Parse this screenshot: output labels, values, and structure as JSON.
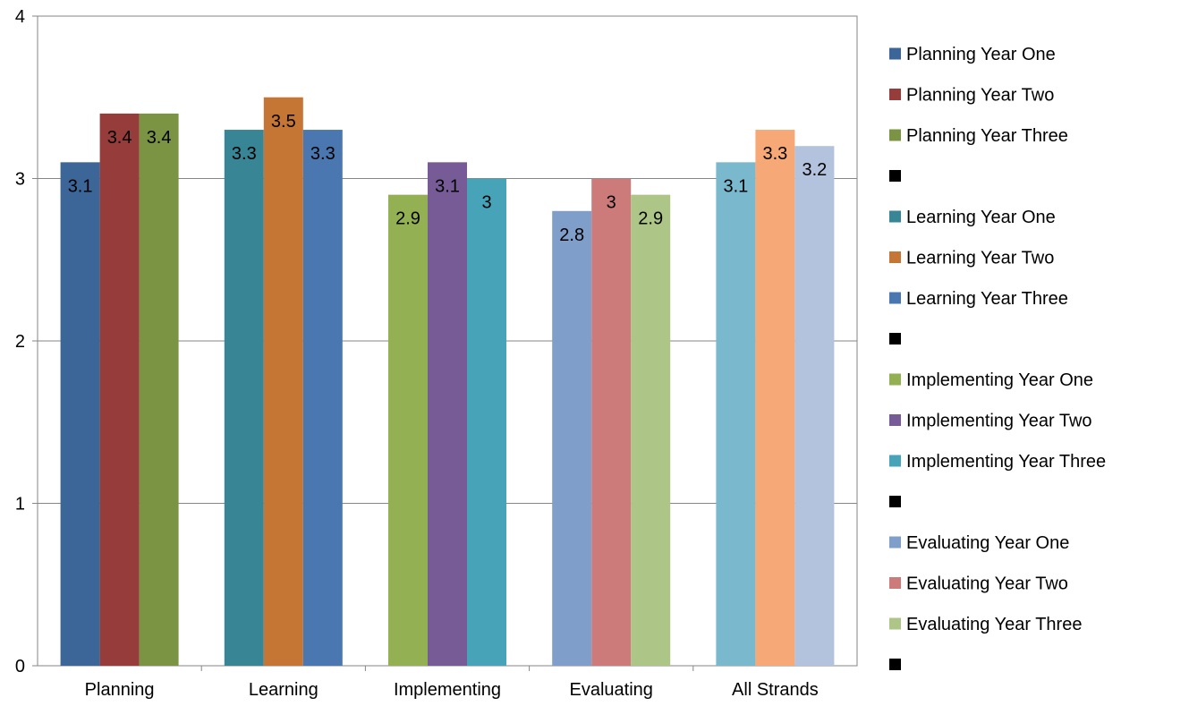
{
  "chart_data": {
    "type": "bar",
    "title": "",
    "xlabel": "",
    "ylabel": "",
    "ylim": [
      0,
      4
    ],
    "yticks": [
      "0",
      "1",
      "2",
      "3",
      "4"
    ],
    "grid": true,
    "legend_position": "right",
    "groups": [
      {
        "category": "Planning",
        "bars": [
          {
            "series": "Planning Year One",
            "value": 3.1,
            "label": "3.1",
            "color": "#3c6598"
          },
          {
            "series": "Planning Year Two",
            "value": 3.4,
            "label": "3.4",
            "color": "#963c3b"
          },
          {
            "series": "Planning Year Three",
            "value": 3.4,
            "label": "3.4",
            "color": "#7a9444"
          }
        ]
      },
      {
        "category": "Learning",
        "bars": [
          {
            "series": "Learning Year One",
            "value": 3.3,
            "label": "3.3",
            "color": "#378595"
          },
          {
            "series": "Learning Year Two",
            "value": 3.5,
            "label": "3.5",
            "color": "#c57634"
          },
          {
            "series": "Learning Year Three",
            "value": 3.3,
            "label": "3.3",
            "color": "#4a77af"
          }
        ]
      },
      {
        "category": "Implementing",
        "bars": [
          {
            "series": "Implementing Year One",
            "value": 2.9,
            "label": "2.9",
            "color": "#93b053"
          },
          {
            "series": "Implementing Year Two",
            "value": 3.1,
            "label": "3.1",
            "color": "#775b97"
          },
          {
            "series": "Implementing Year Three",
            "value": 3.0,
            "label": "3",
            "color": "#47a3b8"
          }
        ]
      },
      {
        "category": "Evaluating",
        "bars": [
          {
            "series": "Evaluating Year One",
            "value": 2.8,
            "label": "2.8",
            "color": "#7f9ec9"
          },
          {
            "series": "Evaluating Year Two",
            "value": 3.0,
            "label": "3",
            "color": "#cd7b7a"
          },
          {
            "series": "Evaluating Year Three",
            "value": 2.9,
            "label": "2.9",
            "color": "#adc586"
          }
        ]
      },
      {
        "category": "All Strands",
        "bars": [
          {
            "series": "",
            "value": 3.1,
            "label": "3.1",
            "color": "#7ab8cd"
          },
          {
            "series": "",
            "value": 3.3,
            "label": "3.3",
            "color": "#f6a977"
          },
          {
            "series": "",
            "value": 3.2,
            "label": "3.2",
            "color": "#b3c3de"
          }
        ]
      }
    ],
    "legend": [
      {
        "label": "Planning Year One",
        "color": "#3c6598"
      },
      {
        "label": "Planning Year Two",
        "color": "#963c3b"
      },
      {
        "label": "Planning Year Three",
        "color": "#7a9444"
      },
      {
        "label": "",
        "color": "#000000"
      },
      {
        "label": "Learning Year One",
        "color": "#378595"
      },
      {
        "label": "Learning Year Two",
        "color": "#c57634"
      },
      {
        "label": "Learning Year Three",
        "color": "#4a77af"
      },
      {
        "label": "",
        "color": "#000000"
      },
      {
        "label": "Implementing Year One",
        "color": "#93b053"
      },
      {
        "label": "Implementing Year Two",
        "color": "#775b97"
      },
      {
        "label": "Implementing Year Three",
        "color": "#47a3b8"
      },
      {
        "label": "",
        "color": "#000000"
      },
      {
        "label": "Evaluating Year One",
        "color": "#7f9ec9"
      },
      {
        "label": "Evaluating Year Two",
        "color": "#cd7b7a"
      },
      {
        "label": "Evaluating Year Three",
        "color": "#adc586"
      },
      {
        "label": "",
        "color": "#000000"
      }
    ]
  }
}
